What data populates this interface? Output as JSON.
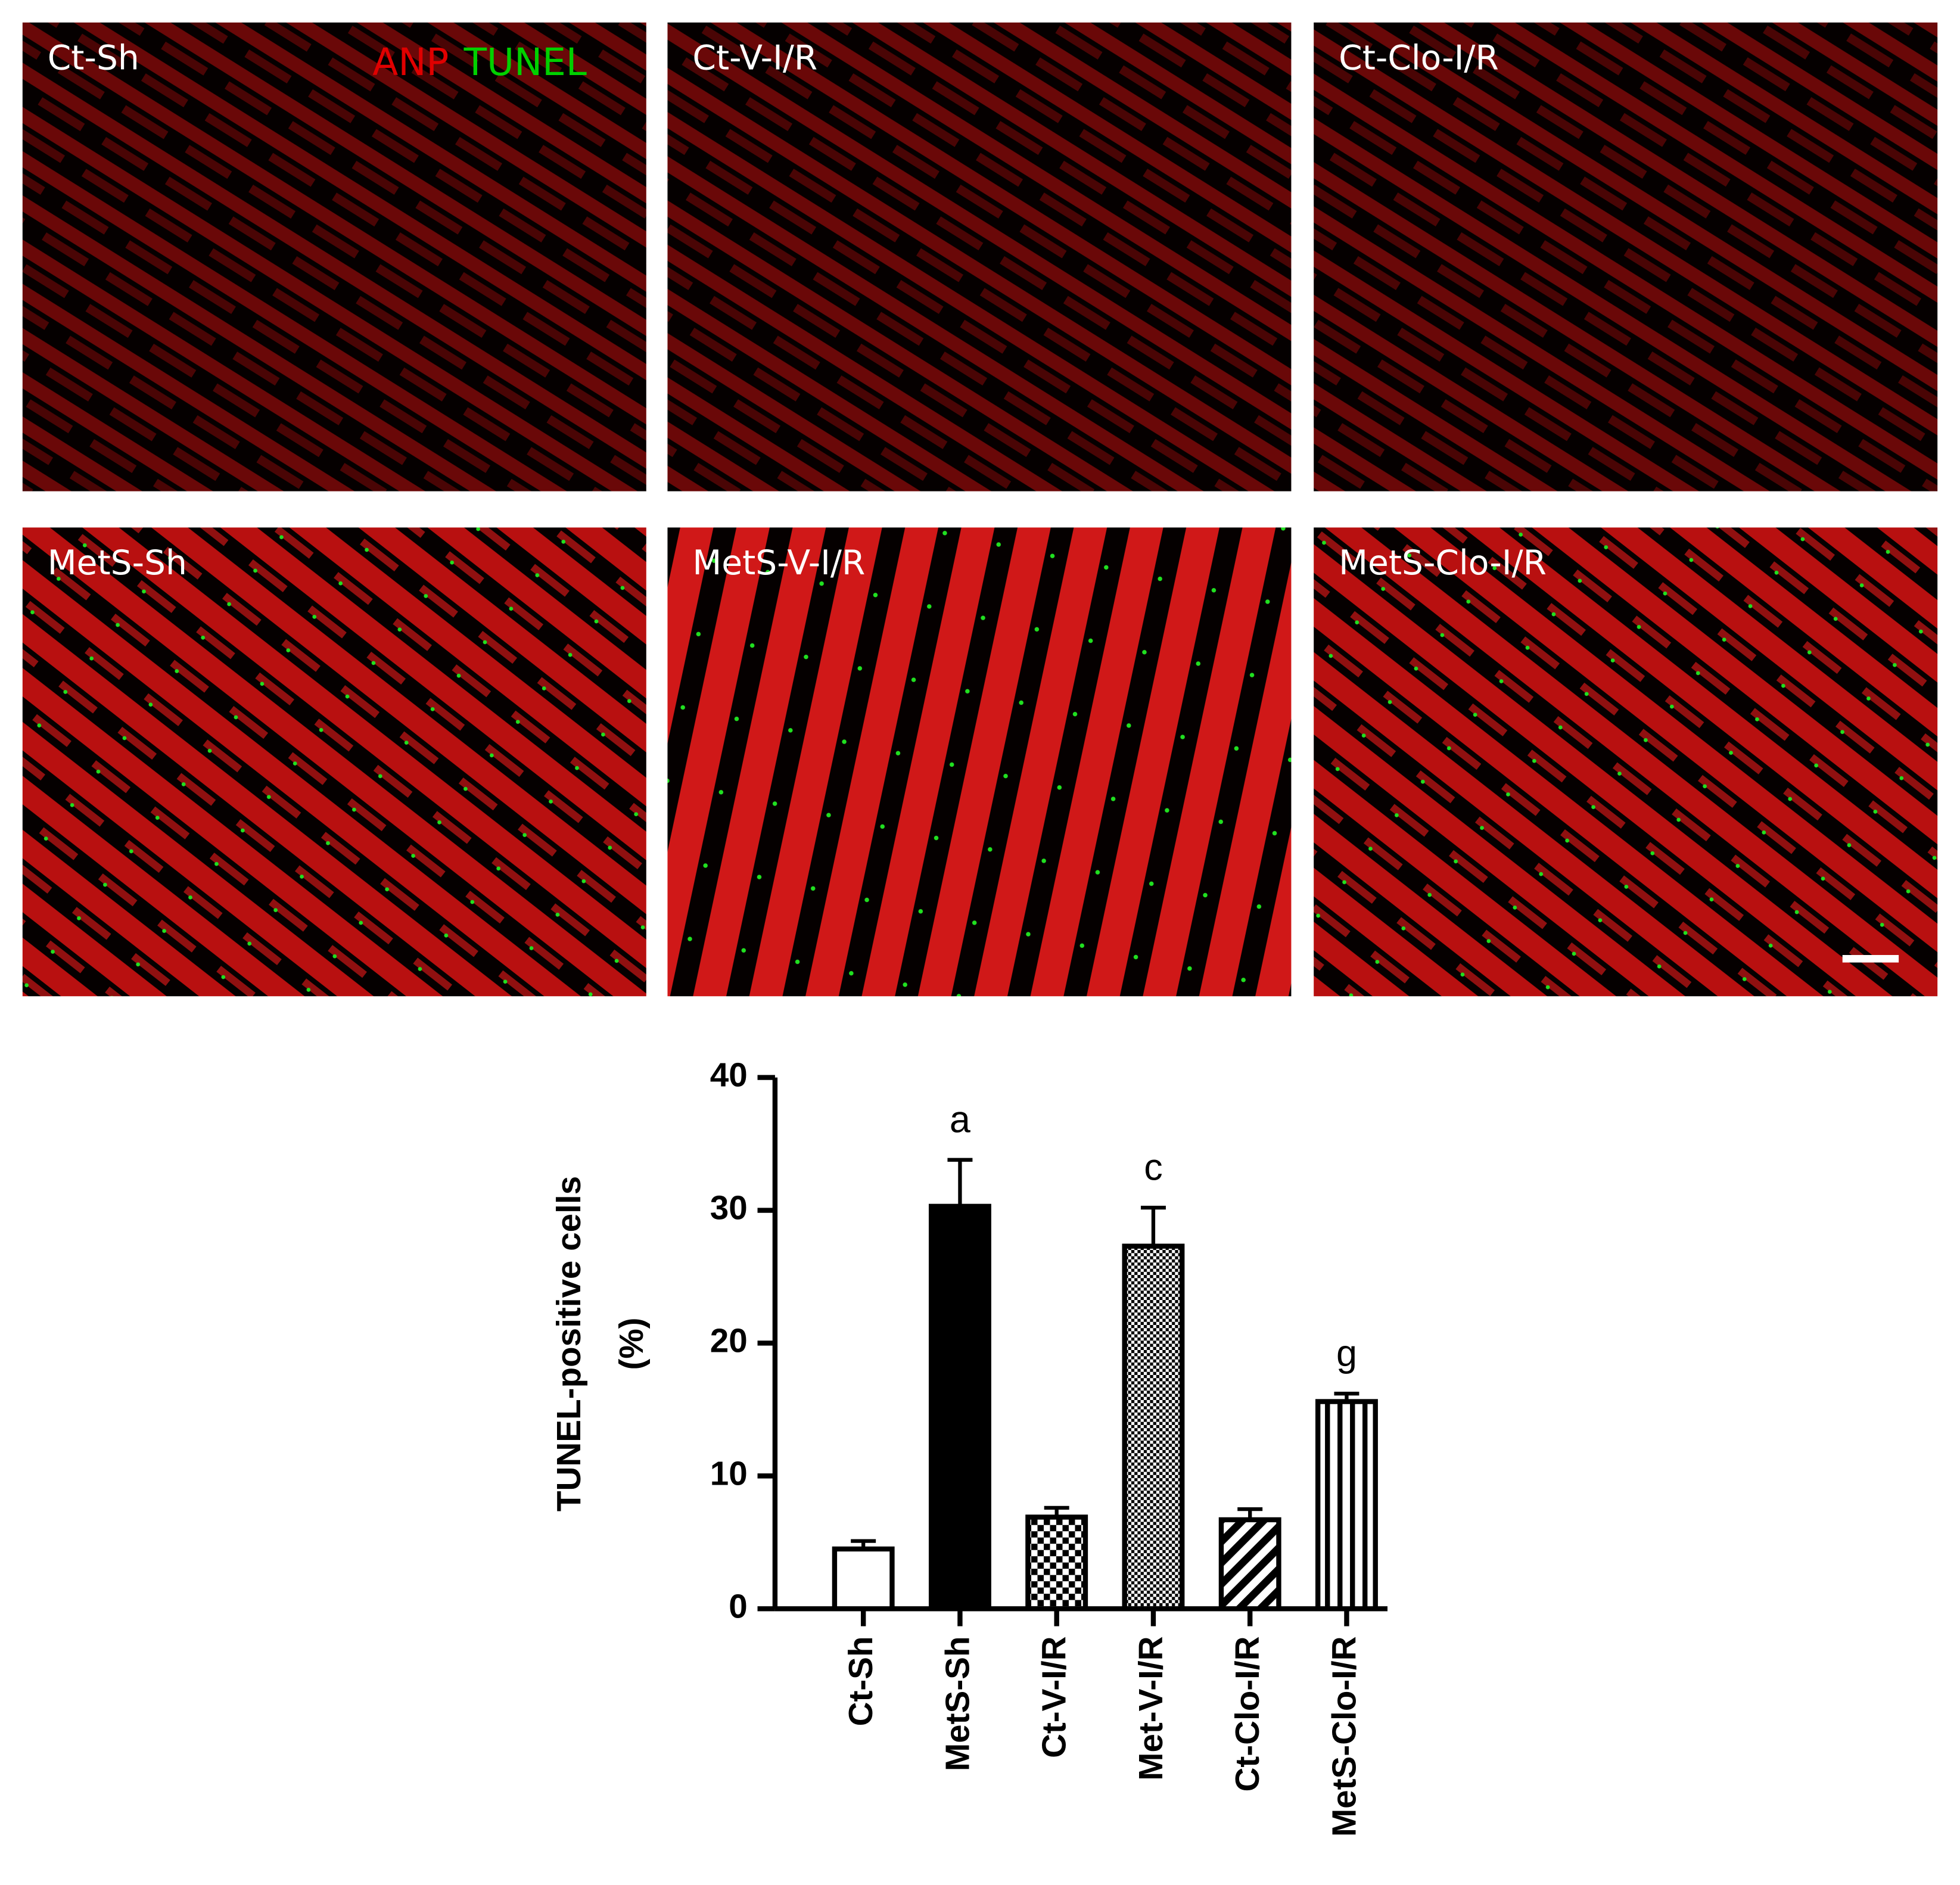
{
  "panels": [
    {
      "label": "Ct-Sh"
    },
    {
      "label": "Ct-V-I/R"
    },
    {
      "label": "Ct-Clo-I/R"
    },
    {
      "label": "MetS-Sh"
    },
    {
      "label": "MetS-V-I/R"
    },
    {
      "label": "MetS-Clo-I/R"
    }
  ],
  "stains": [
    {
      "label": "ANP",
      "color": "#e00000"
    },
    {
      "label": "TUNEL",
      "color": "#00d000"
    }
  ],
  "chart_data": {
    "type": "bar",
    "y_label": [
      "TUNEL-positive cells",
      "(%)"
    ],
    "categories": [
      "Ct-Sh",
      "MetS-Sh",
      "Ct-V-I/R",
      "Met-V-I/R",
      "Ct-Clo-I/R",
      "MetS-Clo-I/R"
    ],
    "values": [
      4.5,
      30.3,
      6.9,
      27.3,
      6.7,
      15.6
    ],
    "errors": [
      0.6,
      3.5,
      0.7,
      2.9,
      0.8,
      0.6
    ],
    "annotations": [
      null,
      "a",
      null,
      "c",
      null,
      "g"
    ],
    "patterns": [
      "white",
      "black",
      "checker",
      "fine-checker",
      "diagonal",
      "vertical-stripes"
    ],
    "ylim": [
      0,
      40
    ],
    "yticks": [
      0,
      10,
      20,
      30,
      40
    ]
  }
}
